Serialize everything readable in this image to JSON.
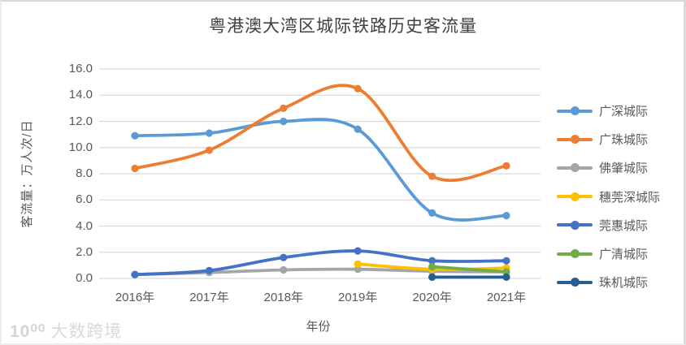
{
  "chart": {
    "title": "粤港澳大湾区城际铁路历史客流量",
    "y_axis_title": "客流量：万人次/日",
    "x_axis_title": "年份"
  },
  "watermark": {
    "logo": "10⁰⁰",
    "text": "大数跨境"
  },
  "colors": {
    "grid": "#D9D9D9",
    "axis_text": "#595959",
    "title_text": "#404040"
  },
  "chart_data": {
    "type": "line",
    "smooth": true,
    "title": "粤港澳大湾区城际铁路历史客流量",
    "xlabel": "年份",
    "ylabel": "客流量：万人次/日",
    "categories": [
      "2016年",
      "2017年",
      "2018年",
      "2019年",
      "2020年",
      "2021年"
    ],
    "y_ticks": [
      "0.0",
      "2.0",
      "4.0",
      "6.0",
      "8.0",
      "10.0",
      "12.0",
      "14.0",
      "16.0"
    ],
    "ylim": [
      0,
      16
    ],
    "grid": true,
    "legend_position": "right",
    "series": [
      {
        "name": "广深城际",
        "color": "#5B9BD5",
        "values": [
          10.9,
          11.1,
          12.0,
          11.4,
          5.0,
          4.8
        ]
      },
      {
        "name": "广珠城际",
        "color": "#ED7D31",
        "values": [
          8.4,
          9.8,
          13.0,
          14.5,
          7.8,
          8.6
        ]
      },
      {
        "name": "佛肇城际",
        "color": "#A5A5A5",
        "values": [
          0.3,
          0.45,
          0.65,
          0.7,
          0.55,
          0.5
        ]
      },
      {
        "name": "穗莞深城际",
        "color": "#FFC000",
        "values": [
          null,
          null,
          null,
          1.1,
          0.7,
          0.8
        ]
      },
      {
        "name": "莞惠城际",
        "color": "#4472C4",
        "values": [
          0.3,
          0.6,
          1.6,
          2.1,
          1.35,
          1.35
        ]
      },
      {
        "name": "广清城际",
        "color": "#70AD47",
        "values": [
          null,
          null,
          null,
          null,
          0.9,
          0.5
        ]
      },
      {
        "name": "珠机城际",
        "color": "#255E91",
        "values": [
          null,
          null,
          null,
          null,
          0.1,
          0.1
        ]
      }
    ]
  }
}
